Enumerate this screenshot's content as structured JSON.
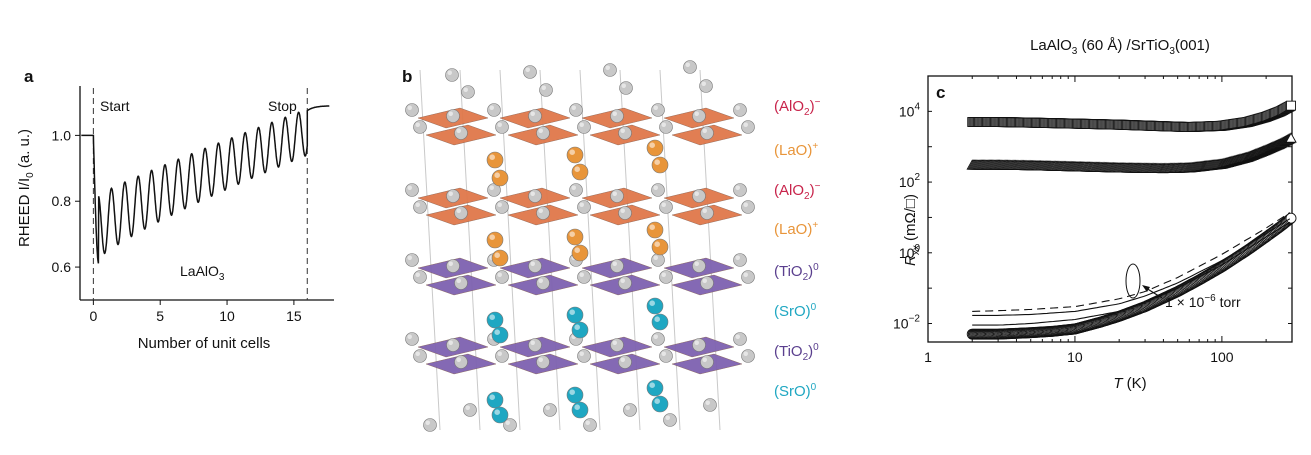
{
  "colors": {
    "alo2": "#c8244b",
    "lao": "#e8953a",
    "tio2": "#5a3f8e",
    "sro": "#1fa7c2",
    "orange_plane": "#e0784a",
    "purple_plane": "#7e62b0",
    "atom_grey": "#c8c8c8"
  },
  "panel_a": {
    "letter": "a",
    "annotation_start": "Start",
    "annotation_stop": "Stop",
    "annotation_material": "LaAlO",
    "annotation_material_sub": "3",
    "chart_data": {
      "type": "line",
      "xlabel": "Number of unit cells",
      "ylabel_main": "RHEED I/I",
      "ylabel_sub": "0",
      "ylabel_units": " (a. u.)",
      "xlim": [
        -1,
        18
      ],
      "ylim": [
        0.5,
        1.15
      ],
      "xticks": [
        0,
        5,
        10,
        15
      ],
      "yticks": [
        0.6,
        0.8,
        1.0
      ],
      "ytick_labels": [
        "0.6",
        "0.8",
        "1.0"
      ],
      "start_x": 0,
      "stop_x": 16,
      "oscillations": 16,
      "initial_level": 1.0,
      "final_level": 1.09,
      "first_min": 0.61,
      "first_max": 0.81,
      "last_min": 0.94,
      "last_max": 1.08
    }
  },
  "panel_b": {
    "letter": "b",
    "layers": [
      {
        "name": "(AlO",
        "sub": "2",
        "sup": ")−",
        "color": "#c8244b"
      },
      {
        "name": "(LaO)",
        "sub": "",
        "sup": "+",
        "color": "#e8953a"
      },
      {
        "name": "(AlO",
        "sub": "2",
        "sup": ")−",
        "color": "#c8244b"
      },
      {
        "name": "(LaO)",
        "sub": "",
        "sup": "+",
        "color": "#e8953a"
      },
      {
        "name": "(TiO",
        "sub": "2",
        "sup": ")0",
        "color": "#5a3f8e"
      },
      {
        "name": "(SrO)",
        "sub": "",
        "sup": "0",
        "color": "#1fa7c2"
      },
      {
        "name": "(TiO",
        "sub": "2",
        "sup": ")0",
        "color": "#5a3f8e"
      },
      {
        "name": "(SrO)",
        "sub": "",
        "sup": "0",
        "color": "#1fa7c2"
      }
    ]
  },
  "panel_c": {
    "letter": "c",
    "title_pre": "LaAlO",
    "title_sub1": "3",
    "title_mid": " (60 Å) /SrTiO",
    "title_sub2": "3",
    "title_post": "(001)",
    "annotation": "1 × 10",
    "annotation_exp": "−6",
    "annotation_post": " torr",
    "chart_data": {
      "type": "scatter",
      "xlabel": "T",
      "xlabel_units": " (K)",
      "ylabel": "R",
      "ylabel_sub": "xx",
      "ylabel_units": " (mΩ/□)",
      "xscale": "log",
      "yscale": "log",
      "xlim": [
        1,
        300
      ],
      "ylim": [
        0.003,
        100000
      ],
      "xticks": [
        1,
        10,
        100
      ],
      "xtick_labels": [
        "1",
        "10",
        "100"
      ],
      "yticks": [
        0.01,
        1,
        100,
        10000
      ],
      "ytick_base": [
        "10",
        "10",
        "10",
        "10"
      ],
      "ytick_exp": [
        "−2",
        "0",
        "2",
        "4"
      ],
      "series": [
        {
          "marker": "square",
          "T": [
            2,
            3,
            5,
            10,
            20,
            40,
            60,
            100,
            150,
            200,
            250,
            300
          ],
          "R": [
            5000,
            5000,
            4800,
            4500,
            4200,
            3800,
            3600,
            3900,
            5000,
            7000,
            10000,
            15000
          ]
        },
        {
          "marker": "triangle",
          "T": [
            2,
            3,
            5,
            10,
            20,
            40,
            60,
            100,
            150,
            200,
            250,
            300
          ],
          "R": [
            300,
            300,
            290,
            270,
            250,
            240,
            250,
            320,
            500,
            800,
            1200,
            1800
          ]
        },
        {
          "marker": "circle",
          "T": [
            2,
            3,
            5,
            7,
            10,
            15,
            20,
            30,
            50,
            70,
            100,
            150,
            200,
            250,
            300
          ],
          "R": [
            0.005,
            0.005,
            0.0055,
            0.006,
            0.007,
            0.011,
            0.016,
            0.03,
            0.08,
            0.17,
            0.4,
            1.2,
            2.8,
            5.5,
            10
          ]
        },
        {
          "marker": "line-dashed",
          "T": [
            2,
            3,
            5,
            10,
            20,
            30,
            50,
            100,
            200,
            300
          ],
          "R": [
            0.022,
            0.023,
            0.025,
            0.03,
            0.05,
            0.08,
            0.2,
            0.9,
            5,
            15
          ]
        },
        {
          "marker": "line-solid-upper",
          "T": [
            2,
            3,
            5,
            10,
            20,
            30,
            50,
            100,
            200,
            300
          ],
          "R": [
            0.017,
            0.017,
            0.018,
            0.022,
            0.036,
            0.06,
            0.14,
            0.6,
            3.5,
            10
          ]
        },
        {
          "marker": "line-solid-lower",
          "T": [
            2,
            3,
            5,
            10,
            20,
            30,
            50,
            100,
            200,
            300
          ],
          "R": [
            0.009,
            0.009,
            0.01,
            0.013,
            0.022,
            0.04,
            0.1,
            0.45,
            2.8,
            8
          ]
        }
      ]
    }
  }
}
